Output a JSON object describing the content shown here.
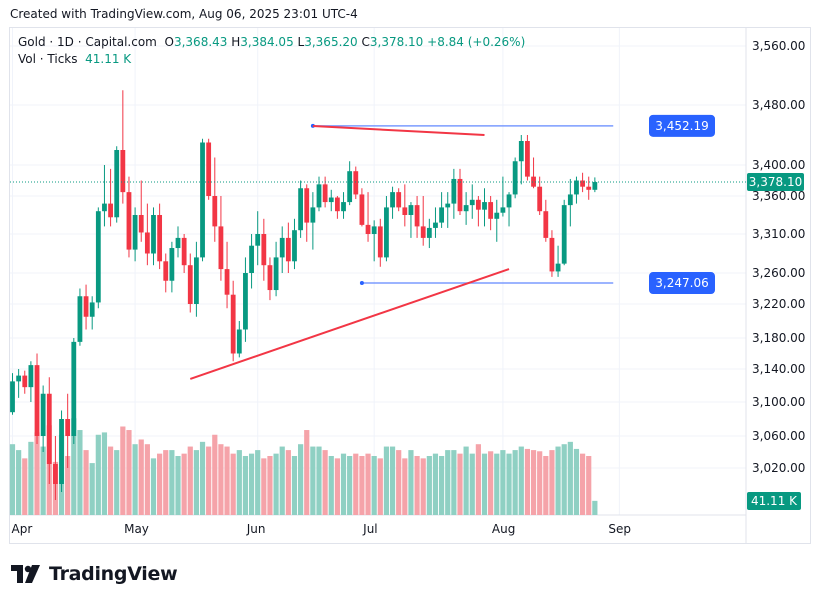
{
  "caption": "Created with TradingView.com, Aug 06, 2025 23:01 UTC-4",
  "legend": {
    "symbol": "Gold · 1D · Capital.com",
    "open_label": "O",
    "open": "3,368.43",
    "high_label": "H",
    "high": "3,384.05",
    "low_label": "L",
    "low": "3,365.20",
    "close_label": "C",
    "close": "3,378.10",
    "change": "+8.84 (+0.26%)",
    "volume_label": "Vol · Ticks",
    "volume": "41.11 K"
  },
  "brand": {
    "name": "TradingView",
    "logo_icon": "tradingview-logo-icon"
  },
  "colors": {
    "up": "#089981",
    "down": "#f23645",
    "vol_up": "#8fd0c3",
    "vol_down": "#f5a3a9",
    "line_blue": "#2962ff",
    "trend_red": "#f23645",
    "label_bg": "#2962ff"
  },
  "chart_data": {
    "type": "candlestick",
    "y_axis": {
      "ticks": [
        3560,
        3480,
        3400,
        3360,
        3310,
        3260,
        3220,
        3180,
        3140,
        3100,
        3060,
        3020
      ],
      "tick_labels": [
        "3,560.00",
        "3,480.00",
        "3,400.00",
        "3,360.00",
        "3,310.00",
        "3,260.00",
        "3,220.00",
        "3,180.00",
        "3,140.00",
        "3,100.00",
        "3,060.00",
        "3,020.00"
      ]
    },
    "x_axis": {
      "labels": [
        "Apr",
        "May",
        "Jun",
        "Jul",
        "Aug",
        "Sep"
      ],
      "label_bar_index": [
        0,
        20,
        40,
        59,
        80,
        99
      ]
    },
    "last_price": 3378.1,
    "last_price_label": "3,378.10",
    "volume_label": "41.11 K",
    "volume_max": 100,
    "annotations": [
      {
        "type": "horizontal",
        "price": 3452.19,
        "label": "3,452.19",
        "from_bar": 49,
        "to_bar": 98
      },
      {
        "type": "horizontal",
        "price": 3247.06,
        "label": "3,247.06",
        "from_bar": 57,
        "to_bar": 98
      },
      {
        "type": "trendline",
        "from_bar": 29,
        "from_price": 3128,
        "to_bar": 81,
        "to_price": 3265
      },
      {
        "type": "trendline",
        "from_bar": 49,
        "from_price": 3452,
        "to_bar": 77,
        "to_price": 3440
      }
    ],
    "candles": [
      [
        3088,
        3135,
        3085,
        3125,
        60
      ],
      [
        3125,
        3140,
        3105,
        3132,
        55
      ],
      [
        3132,
        3138,
        3110,
        3118,
        48
      ],
      [
        3118,
        3150,
        3100,
        3145,
        62
      ],
      [
        3145,
        3160,
        3050,
        3060,
        70
      ],
      [
        3060,
        3120,
        3040,
        3110,
        58
      ],
      [
        3110,
        3130,
        3000,
        3025,
        76
      ],
      [
        3025,
        3060,
        2980,
        3000,
        45
      ],
      [
        3000,
        3090,
        2990,
        3080,
        68
      ],
      [
        3080,
        3110,
        3020,
        3060,
        50
      ],
      [
        3060,
        3180,
        3050,
        3175,
        82
      ],
      [
        3175,
        3240,
        3170,
        3230,
        72
      ],
      [
        3230,
        3245,
        3190,
        3205,
        55
      ],
      [
        3205,
        3230,
        3190,
        3222,
        44
      ],
      [
        3222,
        3345,
        3215,
        3340,
        68
      ],
      [
        3340,
        3400,
        3320,
        3350,
        70
      ],
      [
        3350,
        3395,
        3320,
        3332,
        58
      ],
      [
        3332,
        3425,
        3325,
        3420,
        55
      ],
      [
        3420,
        3500,
        3350,
        3365,
        75
      ],
      [
        3365,
        3385,
        3280,
        3290,
        72
      ],
      [
        3290,
        3345,
        3275,
        3335,
        60
      ],
      [
        3335,
        3380,
        3300,
        3312,
        64
      ],
      [
        3312,
        3350,
        3270,
        3285,
        60
      ],
      [
        3285,
        3345,
        3270,
        3335,
        48
      ],
      [
        3335,
        3350,
        3265,
        3275,
        52
      ],
      [
        3275,
        3285,
        3235,
        3250,
        55
      ],
      [
        3250,
        3300,
        3235,
        3292,
        55
      ],
      [
        3292,
        3320,
        3280,
        3305,
        50
      ],
      [
        3305,
        3310,
        3260,
        3270,
        52
      ],
      [
        3270,
        3285,
        3210,
        3220,
        58
      ],
      [
        3220,
        3300,
        3205,
        3280,
        55
      ],
      [
        3280,
        3435,
        3275,
        3430,
        62
      ],
      [
        3430,
        3435,
        3355,
        3360,
        58
      ],
      [
        3360,
        3410,
        3300,
        3320,
        68
      ],
      [
        3320,
        3360,
        3250,
        3265,
        60
      ],
      [
        3265,
        3300,
        3215,
        3232,
        58
      ],
      [
        3232,
        3250,
        3150,
        3160,
        52
      ],
      [
        3160,
        3200,
        3155,
        3190,
        55
      ],
      [
        3190,
        3280,
        3175,
        3260,
        50
      ],
      [
        3260,
        3310,
        3240,
        3295,
        52
      ],
      [
        3295,
        3340,
        3270,
        3310,
        55
      ],
      [
        3310,
        3330,
        3250,
        3270,
        48
      ],
      [
        3270,
        3280,
        3225,
        3238,
        50
      ],
      [
        3238,
        3300,
        3230,
        3280,
        52
      ],
      [
        3280,
        3320,
        3260,
        3305,
        58
      ],
      [
        3305,
        3325,
        3260,
        3275,
        55
      ],
      [
        3275,
        3330,
        3265,
        3315,
        50
      ],
      [
        3315,
        3380,
        3305,
        3370,
        60
      ],
      [
        3370,
        3375,
        3300,
        3325,
        72
      ],
      [
        3325,
        3365,
        3290,
        3345,
        58
      ],
      [
        3345,
        3385,
        3340,
        3375,
        58
      ],
      [
        3375,
        3385,
        3345,
        3352,
        55
      ],
      [
        3352,
        3368,
        3340,
        3358,
        50
      ],
      [
        3358,
        3360,
        3330,
        3340,
        48
      ],
      [
        3340,
        3365,
        3330,
        3352,
        52
      ],
      [
        3352,
        3405,
        3348,
        3392,
        50
      ],
      [
        3392,
        3398,
        3356,
        3362,
        52
      ],
      [
        3362,
        3370,
        3320,
        3322,
        50
      ],
      [
        3322,
        3365,
        3300,
        3310,
        52
      ],
      [
        3310,
        3328,
        3275,
        3320,
        50
      ],
      [
        3320,
        3330,
        3268,
        3280,
        48
      ],
      [
        3280,
        3360,
        3275,
        3345,
        58
      ],
      [
        3345,
        3372,
        3330,
        3365,
        58
      ],
      [
        3365,
        3370,
        3340,
        3345,
        55
      ],
      [
        3345,
        3375,
        3320,
        3335,
        48
      ],
      [
        3335,
        3352,
        3305,
        3348,
        55
      ],
      [
        3348,
        3360,
        3305,
        3320,
        50
      ],
      [
        3320,
        3360,
        3295,
        3305,
        48
      ],
      [
        3305,
        3330,
        3292,
        3318,
        50
      ],
      [
        3318,
        3345,
        3305,
        3325,
        52
      ],
      [
        3325,
        3365,
        3318,
        3345,
        50
      ],
      [
        3345,
        3365,
        3318,
        3350,
        55
      ],
      [
        3350,
        3395,
        3330,
        3382,
        55
      ],
      [
        3382,
        3395,
        3335,
        3340,
        52
      ],
      [
        3340,
        3365,
        3322,
        3348,
        58
      ],
      [
        3348,
        3375,
        3330,
        3355,
        52
      ],
      [
        3355,
        3360,
        3320,
        3342,
        60
      ],
      [
        3342,
        3370,
        3320,
        3352,
        52
      ],
      [
        3352,
        3360,
        3315,
        3330,
        54
      ],
      [
        3330,
        3355,
        3300,
        3338,
        52
      ],
      [
        3338,
        3385,
        3333,
        3345,
        55
      ],
      [
        3345,
        3365,
        3320,
        3362,
        52
      ],
      [
        3362,
        3410,
        3357,
        3405,
        55
      ],
      [
        3405,
        3440,
        3375,
        3432,
        58
      ],
      [
        3432,
        3440,
        3380,
        3385,
        56
      ],
      [
        3385,
        3410,
        3370,
        3372,
        55
      ],
      [
        3372,
        3385,
        3335,
        3340,
        54
      ],
      [
        3340,
        3355,
        3300,
        3305,
        50
      ],
      [
        3305,
        3315,
        3255,
        3262,
        55
      ],
      [
        3262,
        3295,
        3255,
        3272,
        58
      ],
      [
        3272,
        3355,
        3270,
        3348,
        60
      ],
      [
        3348,
        3382,
        3320,
        3362,
        62
      ],
      [
        3362,
        3385,
        3350,
        3380,
        56
      ],
      [
        3380,
        3390,
        3365,
        3372,
        52
      ],
      [
        3372,
        3385,
        3355,
        3368,
        50
      ],
      [
        3368,
        3384,
        3365,
        3378,
        12
      ]
    ]
  }
}
